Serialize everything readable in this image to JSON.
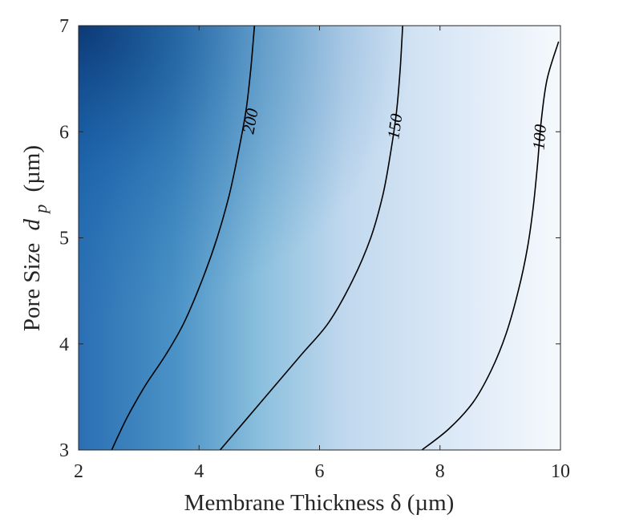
{
  "chart_data": {
    "type": "contour",
    "xlabel": "Membrane Thickness δ (µm)",
    "ylabel": "Pore Size",
    "ylabel_symbol": "d",
    "ylabel_subscript": "p",
    "ylabel_unit": "(µm)",
    "xlim": [
      2,
      10
    ],
    "ylim": [
      3,
      7
    ],
    "xticks": [
      2,
      4,
      6,
      8,
      10
    ],
    "yticks": [
      3,
      4,
      5,
      6,
      7
    ],
    "grid": false,
    "colormap": [
      "#08306b",
      "#2171b5",
      "#6baed6",
      "#c6dbef",
      "#f7fbff"
    ],
    "contours": [
      {
        "level": "200",
        "label_at": {
          "x": 4.85,
          "y": 6.1
        },
        "points": [
          [
            2.55,
            3.0
          ],
          [
            2.8,
            3.3
          ],
          [
            3.1,
            3.6
          ],
          [
            3.45,
            3.9
          ],
          [
            3.75,
            4.2
          ],
          [
            4.05,
            4.6
          ],
          [
            4.3,
            5.0
          ],
          [
            4.5,
            5.4
          ],
          [
            4.65,
            5.8
          ],
          [
            4.78,
            6.2
          ],
          [
            4.86,
            6.6
          ],
          [
            4.92,
            7.0
          ]
        ]
      },
      {
        "level": "150",
        "label_at": {
          "x": 7.25,
          "y": 6.05
        },
        "points": [
          [
            4.35,
            3.0
          ],
          [
            4.8,
            3.3
          ],
          [
            5.25,
            3.6
          ],
          [
            5.7,
            3.9
          ],
          [
            6.15,
            4.2
          ],
          [
            6.55,
            4.6
          ],
          [
            6.85,
            5.0
          ],
          [
            7.05,
            5.4
          ],
          [
            7.18,
            5.8
          ],
          [
            7.28,
            6.2
          ],
          [
            7.34,
            6.6
          ],
          [
            7.38,
            7.0
          ]
        ]
      },
      {
        "level": "100",
        "label_at": {
          "x": 9.65,
          "y": 5.95
        },
        "points": [
          [
            7.7,
            3.0
          ],
          [
            8.15,
            3.2
          ],
          [
            8.55,
            3.45
          ],
          [
            8.85,
            3.75
          ],
          [
            9.1,
            4.1
          ],
          [
            9.3,
            4.5
          ],
          [
            9.45,
            4.9
          ],
          [
            9.55,
            5.3
          ],
          [
            9.62,
            5.7
          ],
          [
            9.68,
            6.1
          ],
          [
            9.78,
            6.5
          ],
          [
            9.97,
            6.85
          ]
        ]
      }
    ]
  }
}
